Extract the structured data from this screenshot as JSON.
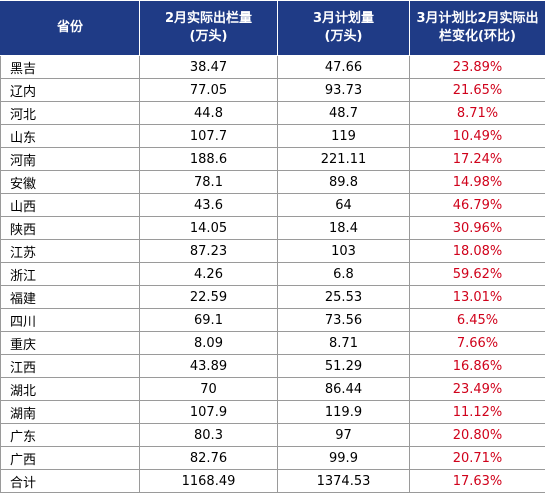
{
  "headers": {
    "province": "省份",
    "feb_actual_line1": "2月实际出栏量",
    "feb_actual_line2": "(万头)",
    "mar_plan_line1": "3月计划量",
    "mar_plan_line2": "(万头)",
    "change_line1": "3月计划比2月实际出",
    "change_line2": "栏变化(环比)"
  },
  "rows": [
    {
      "province": "黑吉",
      "feb_actual": "38.47",
      "mar_plan": "47.66",
      "change": "23.89%"
    },
    {
      "province": "辽内",
      "feb_actual": "77.05",
      "mar_plan": "93.73",
      "change": "21.65%"
    },
    {
      "province": "河北",
      "feb_actual": "44.8",
      "mar_plan": "48.7",
      "change": "8.71%"
    },
    {
      "province": "山东",
      "feb_actual": "107.7",
      "mar_plan": "119",
      "change": "10.49%"
    },
    {
      "province": "河南",
      "feb_actual": "188.6",
      "mar_plan": "221.11",
      "change": "17.24%"
    },
    {
      "province": "安徽",
      "feb_actual": "78.1",
      "mar_plan": "89.8",
      "change": "14.98%"
    },
    {
      "province": "山西",
      "feb_actual": "43.6",
      "mar_plan": "64",
      "change": "46.79%"
    },
    {
      "province": "陕西",
      "feb_actual": "14.05",
      "mar_plan": "18.4",
      "change": "30.96%"
    },
    {
      "province": "江苏",
      "feb_actual": "87.23",
      "mar_plan": "103",
      "change": "18.08%"
    },
    {
      "province": "浙江",
      "feb_actual": "4.26",
      "mar_plan": "6.8",
      "change": "59.62%"
    },
    {
      "province": "福建",
      "feb_actual": "22.59",
      "mar_plan": "25.53",
      "change": "13.01%"
    },
    {
      "province": "四川",
      "feb_actual": "69.1",
      "mar_plan": "73.56",
      "change": "6.45%"
    },
    {
      "province": "重庆",
      "feb_actual": "8.09",
      "mar_plan": "8.71",
      "change": "7.66%"
    },
    {
      "province": "江西",
      "feb_actual": "43.89",
      "mar_plan": "51.29",
      "change": "16.86%"
    },
    {
      "province": "湖北",
      "feb_actual": "70",
      "mar_plan": "86.44",
      "change": "23.49%"
    },
    {
      "province": "湖南",
      "feb_actual": "107.9",
      "mar_plan": "119.9",
      "change": "11.12%"
    },
    {
      "province": "广东",
      "feb_actual": "80.3",
      "mar_plan": "97",
      "change": "20.80%"
    },
    {
      "province": "广西",
      "feb_actual": "82.76",
      "mar_plan": "99.9",
      "change": "20.71%"
    },
    {
      "province": "合计",
      "feb_actual": "1168.49",
      "mar_plan": "1374.53",
      "change": "17.63%"
    }
  ],
  "colors": {
    "header_bg": "#1f3b86",
    "header_text": "#ffffff",
    "change_text": "#d0021b",
    "grid": "#9a9a9a"
  }
}
